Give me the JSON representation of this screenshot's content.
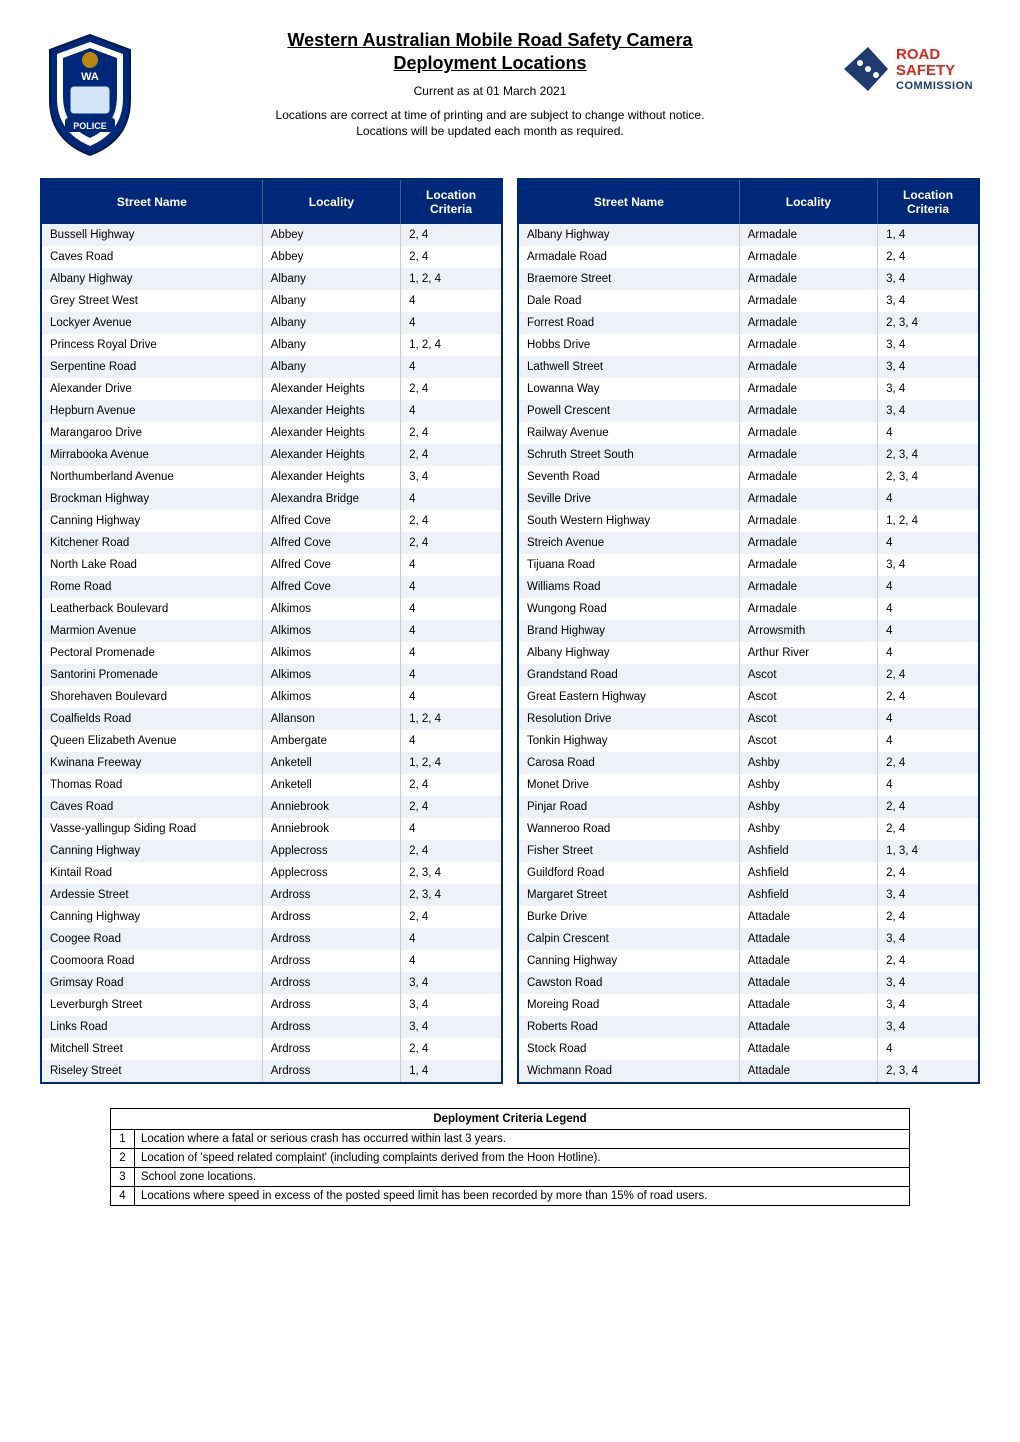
{
  "header": {
    "title_line1": "Western Australian Mobile Road Safety Camera",
    "title_line2": "Deployment Locations",
    "date_line": "Current as at 01 March 2021",
    "disclaimer_line1": "Locations are correct at time of printing and are subject to change without notice.",
    "disclaimer_line2": "Locations will be updated each month as required.",
    "badge_text_wa": "WA",
    "badge_text_police": "POLICE",
    "rsc_line1": "ROAD",
    "rsc_line2": "SAFETY",
    "rsc_line3": "COMMISSION"
  },
  "columns": {
    "street": "Street Name",
    "locality": "Locality",
    "criteria_line1": "Location",
    "criteria_line2": "Criteria"
  },
  "table_left": [
    {
      "street": "Bussell Highway",
      "locality": "Abbey",
      "criteria": "2, 4"
    },
    {
      "street": "Caves Road",
      "locality": "Abbey",
      "criteria": "2, 4"
    },
    {
      "street": "Albany Highway",
      "locality": "Albany",
      "criteria": "1, 2, 4"
    },
    {
      "street": "Grey Street West",
      "locality": "Albany",
      "criteria": "4"
    },
    {
      "street": "Lockyer Avenue",
      "locality": "Albany",
      "criteria": "4"
    },
    {
      "street": "Princess Royal Drive",
      "locality": "Albany",
      "criteria": "1, 2, 4"
    },
    {
      "street": "Serpentine Road",
      "locality": "Albany",
      "criteria": "4"
    },
    {
      "street": "Alexander Drive",
      "locality": "Alexander Heights",
      "criteria": "2, 4"
    },
    {
      "street": "Hepburn Avenue",
      "locality": "Alexander Heights",
      "criteria": "4"
    },
    {
      "street": "Marangaroo Drive",
      "locality": "Alexander Heights",
      "criteria": "2, 4"
    },
    {
      "street": "Mirrabooka Avenue",
      "locality": "Alexander Heights",
      "criteria": "2, 4"
    },
    {
      "street": "Northumberland Avenue",
      "locality": "Alexander Heights",
      "criteria": "3, 4"
    },
    {
      "street": "Brockman Highway",
      "locality": "Alexandra Bridge",
      "criteria": "4"
    },
    {
      "street": "Canning Highway",
      "locality": "Alfred Cove",
      "criteria": "2, 4"
    },
    {
      "street": "Kitchener Road",
      "locality": "Alfred Cove",
      "criteria": "2, 4"
    },
    {
      "street": "North Lake Road",
      "locality": "Alfred Cove",
      "criteria": "4"
    },
    {
      "street": "Rome Road",
      "locality": "Alfred Cove",
      "criteria": "4"
    },
    {
      "street": "Leatherback Boulevard",
      "locality": "Alkimos",
      "criteria": "4"
    },
    {
      "street": "Marmion Avenue",
      "locality": "Alkimos",
      "criteria": "4"
    },
    {
      "street": "Pectoral Promenade",
      "locality": "Alkimos",
      "criteria": "4"
    },
    {
      "street": "Santorini Promenade",
      "locality": "Alkimos",
      "criteria": "4"
    },
    {
      "street": "Shorehaven Boulevard",
      "locality": "Alkimos",
      "criteria": "4"
    },
    {
      "street": "Coalfields Road",
      "locality": "Allanson",
      "criteria": "1, 2, 4"
    },
    {
      "street": "Queen Elizabeth Avenue",
      "locality": "Ambergate",
      "criteria": "4"
    },
    {
      "street": "Kwinana Freeway",
      "locality": "Anketell",
      "criteria": "1, 2, 4"
    },
    {
      "street": "Thomas Road",
      "locality": "Anketell",
      "criteria": "2, 4"
    },
    {
      "street": "Caves Road",
      "locality": "Anniebrook",
      "criteria": "2, 4"
    },
    {
      "street": "Vasse-yallingup Siding Road",
      "locality": "Anniebrook",
      "criteria": "4"
    },
    {
      "street": "Canning Highway",
      "locality": "Applecross",
      "criteria": "2, 4"
    },
    {
      "street": "Kintail Road",
      "locality": "Applecross",
      "criteria": "2, 3, 4"
    },
    {
      "street": "Ardessie Street",
      "locality": "Ardross",
      "criteria": "2, 3, 4"
    },
    {
      "street": "Canning Highway",
      "locality": "Ardross",
      "criteria": "2, 4"
    },
    {
      "street": "Coogee Road",
      "locality": "Ardross",
      "criteria": "4"
    },
    {
      "street": "Coomoora Road",
      "locality": "Ardross",
      "criteria": "4"
    },
    {
      "street": "Grimsay Road",
      "locality": "Ardross",
      "criteria": "3, 4"
    },
    {
      "street": "Leverburgh Street",
      "locality": "Ardross",
      "criteria": "3, 4"
    },
    {
      "street": "Links Road",
      "locality": "Ardross",
      "criteria": "3, 4"
    },
    {
      "street": "Mitchell Street",
      "locality": "Ardross",
      "criteria": "2, 4"
    },
    {
      "street": "Riseley Street",
      "locality": "Ardross",
      "criteria": "1, 4"
    }
  ],
  "table_right": [
    {
      "street": "Albany Highway",
      "locality": "Armadale",
      "criteria": "1, 4"
    },
    {
      "street": "Armadale Road",
      "locality": "Armadale",
      "criteria": "2, 4"
    },
    {
      "street": "Braemore Street",
      "locality": "Armadale",
      "criteria": "3, 4"
    },
    {
      "street": "Dale Road",
      "locality": "Armadale",
      "criteria": "3, 4"
    },
    {
      "street": "Forrest Road",
      "locality": "Armadale",
      "criteria": "2, 3, 4"
    },
    {
      "street": "Hobbs Drive",
      "locality": "Armadale",
      "criteria": "3, 4"
    },
    {
      "street": "Lathwell Street",
      "locality": "Armadale",
      "criteria": "3, 4"
    },
    {
      "street": "Lowanna Way",
      "locality": "Armadale",
      "criteria": "3, 4"
    },
    {
      "street": "Powell Crescent",
      "locality": "Armadale",
      "criteria": "3, 4"
    },
    {
      "street": "Railway Avenue",
      "locality": "Armadale",
      "criteria": "4"
    },
    {
      "street": "Schruth Street South",
      "locality": "Armadale",
      "criteria": "2, 3, 4"
    },
    {
      "street": "Seventh Road",
      "locality": "Armadale",
      "criteria": "2, 3, 4"
    },
    {
      "street": "Seville Drive",
      "locality": "Armadale",
      "criteria": "4"
    },
    {
      "street": "South Western Highway",
      "locality": "Armadale",
      "criteria": "1, 2, 4"
    },
    {
      "street": "Streich Avenue",
      "locality": "Armadale",
      "criteria": "4"
    },
    {
      "street": "Tijuana Road",
      "locality": "Armadale",
      "criteria": "3, 4"
    },
    {
      "street": "Williams Road",
      "locality": "Armadale",
      "criteria": "4"
    },
    {
      "street": "Wungong Road",
      "locality": "Armadale",
      "criteria": "4"
    },
    {
      "street": "Brand Highway",
      "locality": "Arrowsmith",
      "criteria": "4"
    },
    {
      "street": "Albany Highway",
      "locality": "Arthur River",
      "criteria": "4"
    },
    {
      "street": "Grandstand Road",
      "locality": "Ascot",
      "criteria": "2, 4"
    },
    {
      "street": "Great Eastern Highway",
      "locality": "Ascot",
      "criteria": "2, 4"
    },
    {
      "street": "Resolution Drive",
      "locality": "Ascot",
      "criteria": "4"
    },
    {
      "street": "Tonkin Highway",
      "locality": "Ascot",
      "criteria": "4"
    },
    {
      "street": "Carosa Road",
      "locality": "Ashby",
      "criteria": "2, 4"
    },
    {
      "street": "Monet Drive",
      "locality": "Ashby",
      "criteria": "4"
    },
    {
      "street": "Pinjar Road",
      "locality": "Ashby",
      "criteria": "2, 4"
    },
    {
      "street": "Wanneroo Road",
      "locality": "Ashby",
      "criteria": "2, 4"
    },
    {
      "street": "Fisher Street",
      "locality": "Ashfield",
      "criteria": "1, 3, 4"
    },
    {
      "street": "Guildford Road",
      "locality": "Ashfield",
      "criteria": "2, 4"
    },
    {
      "street": "Margaret Street",
      "locality": "Ashfield",
      "criteria": "3, 4"
    },
    {
      "street": "Burke Drive",
      "locality": "Attadale",
      "criteria": "2, 4"
    },
    {
      "street": "Calpin Crescent",
      "locality": "Attadale",
      "criteria": "3, 4"
    },
    {
      "street": "Canning Highway",
      "locality": "Attadale",
      "criteria": "2, 4"
    },
    {
      "street": "Cawston Road",
      "locality": "Attadale",
      "criteria": "3, 4"
    },
    {
      "street": "Moreing Road",
      "locality": "Attadale",
      "criteria": "3, 4"
    },
    {
      "street": "Roberts Road",
      "locality": "Attadale",
      "criteria": "3, 4"
    },
    {
      "street": "Stock Road",
      "locality": "Attadale",
      "criteria": "4"
    },
    {
      "street": "Wichmann Road",
      "locality": "Attadale",
      "criteria": "2, 3, 4"
    }
  ],
  "legend": {
    "title": "Deployment Criteria Legend",
    "rows": [
      {
        "num": "1",
        "text": "Location where a fatal or serious crash has occurred within last 3 years."
      },
      {
        "num": "2",
        "text": "Location of 'speed related complaint' (including complaints derived from the Hoon Hotline)."
      },
      {
        "num": "3",
        "text": "School zone locations."
      },
      {
        "num": "4",
        "text": "Locations where speed in excess of the posted speed limit has been recorded by more than 15% of road users."
      }
    ]
  },
  "colors": {
    "header_bg": "#002878",
    "header_text": "#ffffff",
    "row_odd_bg": "#eef1f6",
    "row_even_bg": "#ffffff",
    "rsc_red": "#d52b1e",
    "rsc_blue": "#1e3a6e"
  }
}
